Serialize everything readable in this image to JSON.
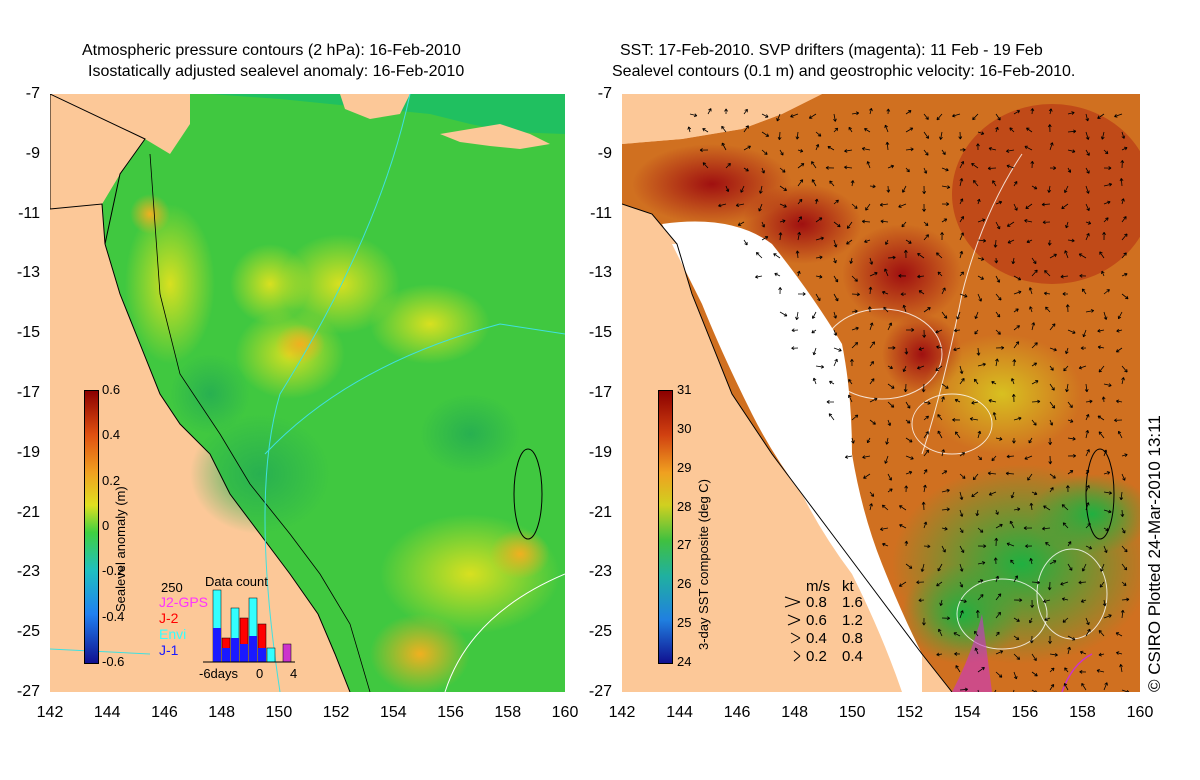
{
  "left_panel": {
    "title_line1": "Atmospheric pressure contours (2 hPa): 16-Feb-2010",
    "title_line2": "Isostatically adjusted sealevel anomaly: 16-Feb-2010",
    "colorbar": {
      "label": "Sealevel anomaly (m)",
      "ticks": [
        "0.6",
        "0.4",
        "0.2",
        "0",
        "-0.2",
        "-0.4",
        "-0.6"
      ],
      "range": [
        -0.6,
        0.6
      ]
    },
    "data_count": {
      "title": "Data count",
      "max_label": "250",
      "x_labels": [
        "-6days",
        "0",
        "4"
      ],
      "legend": [
        {
          "name": "J2-GPS",
          "color": "#ff33ff"
        },
        {
          "name": "J-2",
          "color": "#ff0000"
        },
        {
          "name": "Envi",
          "color": "#33ffff"
        },
        {
          "name": "J-1",
          "color": "#1a1aff"
        }
      ]
    }
  },
  "right_panel": {
    "title_line1": "SST: 17-Feb-2010. SVP drifters (magenta): 11 Feb - 19 Feb",
    "title_line2": "Sealevel contours (0.1 m) and geostrophic velocity: 16-Feb-2010.",
    "colorbar": {
      "label": "3-day SST composite (deg C)",
      "ticks": [
        "31",
        "30",
        "29",
        "28",
        "27",
        "26",
        "25",
        "24"
      ],
      "range": [
        24,
        31
      ]
    },
    "velocity_legend": {
      "header_ms": "m/s",
      "header_kt": "kt",
      "rows": [
        {
          "ms": "0.8",
          "kt": "1.6"
        },
        {
          "ms": "0.6",
          "kt": "1.2"
        },
        {
          "ms": "0.4",
          "kt": "0.8"
        },
        {
          "ms": "0.2",
          "kt": "0.4"
        }
      ]
    }
  },
  "axes": {
    "y_ticks": [
      "-7",
      "-9",
      "-11",
      "-13",
      "-15",
      "-17",
      "-19",
      "-21",
      "-23",
      "-25",
      "-27"
    ],
    "x_ticks": [
      "142",
      "144",
      "146",
      "148",
      "150",
      "152",
      "154",
      "156",
      "158",
      "160"
    ]
  },
  "credit": "© CSIRO Plotted 24-Mar-2010 13:11",
  "colors": {
    "land": "#fcc898",
    "sea_green": "#3cc83c",
    "sst_warm": "#c0201c"
  }
}
